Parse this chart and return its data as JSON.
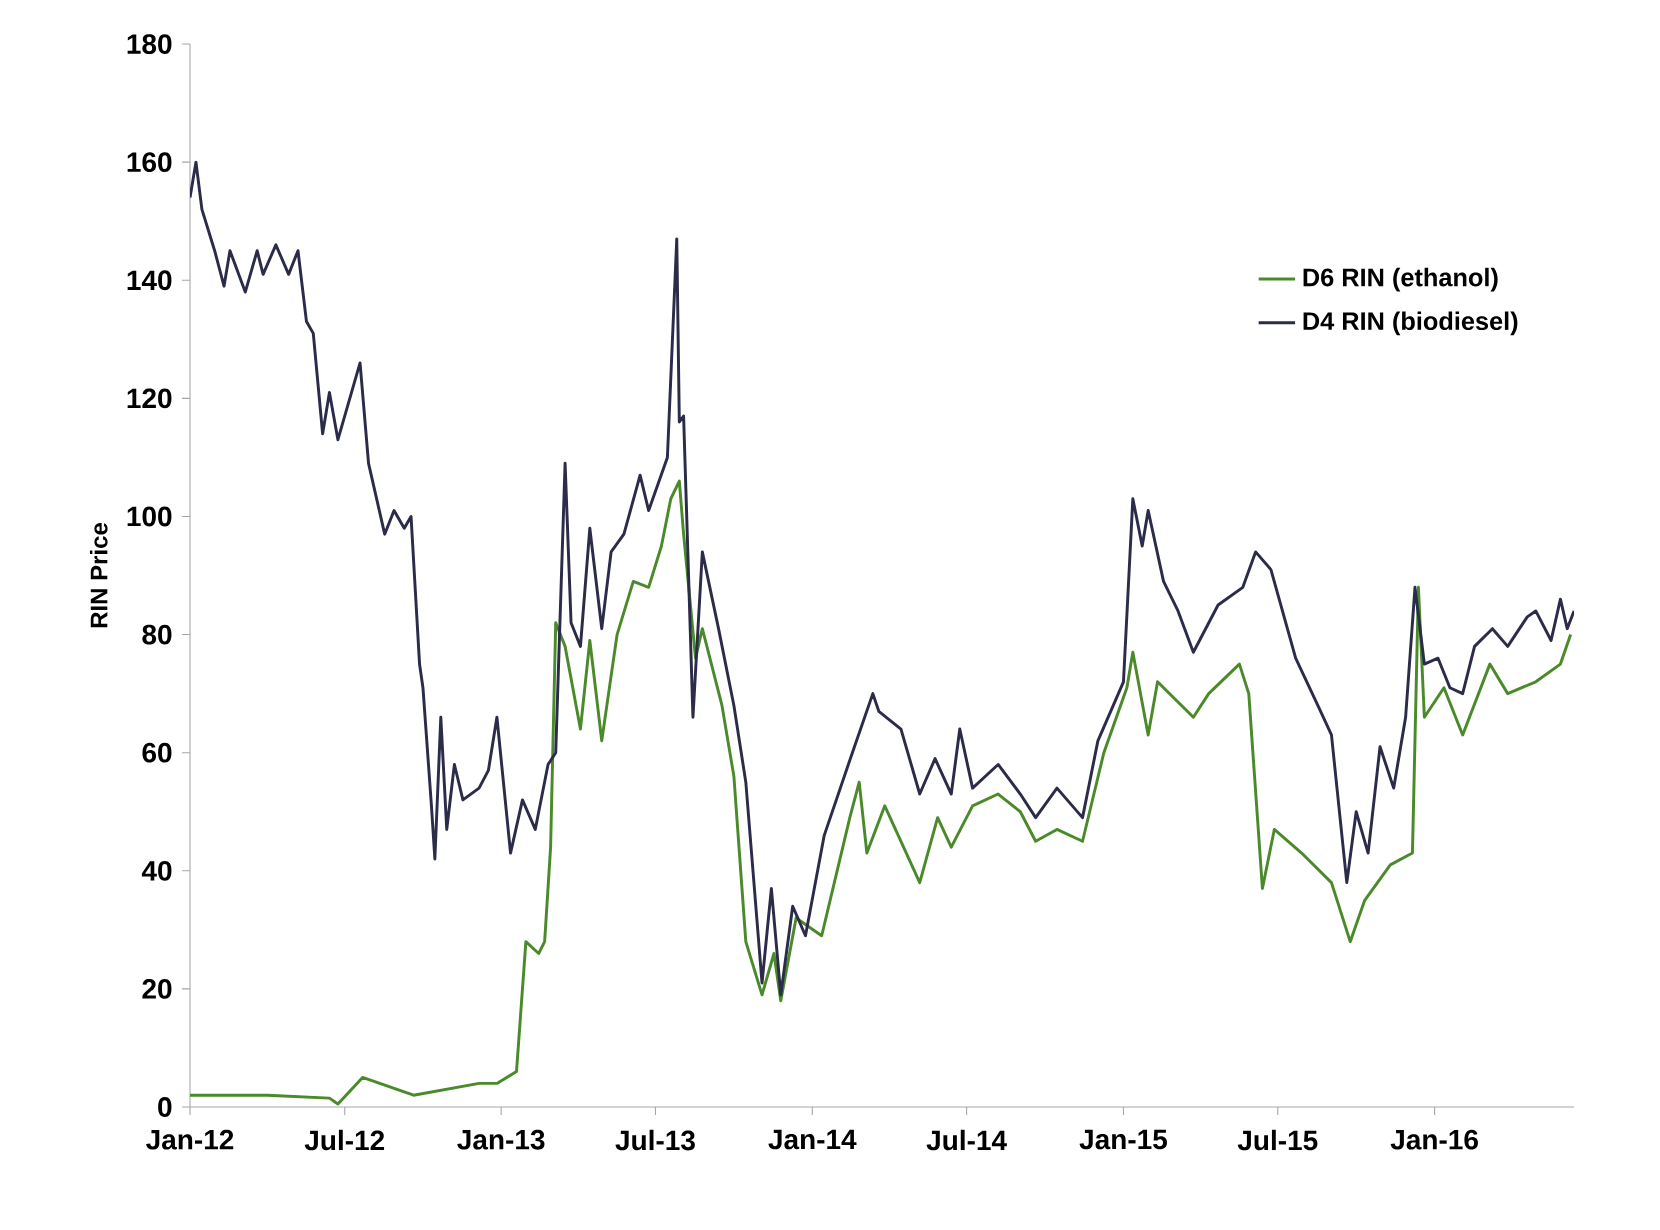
{
  "chart_data": {
    "type": "line",
    "ylabel": "RIN Price",
    "legend": "top right",
    "xlim": [
      "2012-01-01",
      "2016-06-13"
    ],
    "ylim": [
      0,
      180
    ],
    "xticks": [
      {
        "value": "2012-01-01",
        "label": "Jan-12"
      },
      {
        "value": "2012-07-01",
        "label": "Jul-12"
      },
      {
        "value": "2013-01-01",
        "label": "Jan-13"
      },
      {
        "value": "2013-07-01",
        "label": "Jul-13"
      },
      {
        "value": "2014-01-01",
        "label": "Jan-14"
      },
      {
        "value": "2014-07-01",
        "label": "Jul-14"
      },
      {
        "value": "2015-01-01",
        "label": "Jan-15"
      },
      {
        "value": "2015-07-01",
        "label": "Jul-15"
      },
      {
        "value": "2016-01-01",
        "label": "Jan-16"
      }
    ],
    "yticks": [
      0,
      20,
      40,
      60,
      80,
      100,
      120,
      140,
      160,
      180
    ],
    "series": [
      {
        "name": "D6 RIN (ethanol)",
        "color": "#4a8a2a",
        "x": [
          "2012-01-01",
          "2012-04-01",
          "2012-06-13",
          "2012-06-23",
          "2012-07-22",
          "2012-09-20",
          "2012-12-06",
          "2012-12-27",
          "2013-01-19",
          "2013-01-30",
          "2013-02-14",
          "2013-02-21",
          "2013-02-28",
          "2013-03-06",
          "2013-03-17",
          "2013-04-04",
          "2013-04-15",
          "2013-04-29",
          "2013-05-17",
          "2013-06-05",
          "2013-06-23",
          "2013-07-08",
          "2013-07-19",
          "2013-07-29",
          "2013-08-03",
          "2013-08-17",
          "2013-08-25",
          "2013-09-17",
          "2013-10-01",
          "2013-10-15",
          "2013-11-03",
          "2013-11-17",
          "2013-11-25",
          "2013-12-13",
          "2014-01-12",
          "2014-02-14",
          "2014-02-25",
          "2014-03-06",
          "2014-03-27",
          "2014-05-07",
          "2014-05-28",
          "2014-06-13",
          "2014-07-08",
          "2014-08-07",
          "2014-09-02",
          "2014-09-20",
          "2014-10-15",
          "2014-11-14",
          "2014-12-09",
          "2015-01-05",
          "2015-01-12",
          "2015-01-30",
          "2015-02-10",
          "2015-03-24",
          "2015-04-11",
          "2015-05-17",
          "2015-05-28",
          "2015-06-13",
          "2015-06-27",
          "2015-07-29",
          "2015-09-02",
          "2015-09-24",
          "2015-10-11",
          "2015-11-10",
          "2015-12-06",
          "2015-12-13",
          "2015-12-20",
          "2016-01-12",
          "2016-02-03",
          "2016-03-06",
          "2016-03-27",
          "2016-04-29",
          "2016-05-28",
          "2016-06-09"
        ],
        "values": [
          2,
          2,
          1.5,
          0.5,
          5,
          2,
          4,
          4,
          6,
          28,
          26,
          28,
          44,
          82,
          78,
          64,
          79,
          62,
          80,
          89,
          88,
          95,
          103,
          106,
          97,
          76,
          81,
          68,
          56,
          28,
          19,
          26,
          18,
          32,
          29,
          49,
          55,
          43,
          51,
          38,
          49,
          44,
          51,
          53,
          50,
          45,
          47,
          45,
          60,
          71,
          77,
          63,
          72,
          66,
          70,
          75,
          70,
          37,
          47,
          43,
          38,
          28,
          35,
          41,
          43,
          88,
          66,
          71,
          63,
          75,
          70,
          72,
          75,
          80
        ]
      },
      {
        "name": "D4 RIN (biodiesel)",
        "color": "#2b2b4a",
        "x": [
          "2012-01-01",
          "2012-01-08",
          "2012-01-15",
          "2012-01-30",
          "2012-02-10",
          "2012-02-17",
          "2012-03-06",
          "2012-03-20",
          "2012-03-27",
          "2012-04-11",
          "2012-04-26",
          "2012-05-07",
          "2012-05-17",
          "2012-05-25",
          "2012-06-05",
          "2012-06-13",
          "2012-06-23",
          "2012-07-19",
          "2012-07-29",
          "2012-08-17",
          "2012-08-28",
          "2012-09-09",
          "2012-09-17",
          "2012-09-27",
          "2012-10-01",
          "2012-10-11",
          "2012-10-15",
          "2012-10-22",
          "2012-10-29",
          "2012-11-07",
          "2012-11-17",
          "2012-12-06",
          "2012-12-17",
          "2012-12-27",
          "2013-01-12",
          "2013-01-26",
          "2013-02-10",
          "2013-02-25",
          "2013-03-06",
          "2013-03-17",
          "2013-03-24",
          "2013-04-04",
          "2013-04-15",
          "2013-04-29",
          "2013-05-10",
          "2013-05-25",
          "2013-06-13",
          "2013-06-23",
          "2013-07-15",
          "2013-07-26",
          "2013-07-29",
          "2013-08-03",
          "2013-08-14",
          "2013-08-25",
          "2013-09-13",
          "2013-10-01",
          "2013-10-15",
          "2013-11-03",
          "2013-11-14",
          "2013-11-25",
          "2013-12-09",
          "2013-12-24",
          "2014-01-15",
          "2014-02-17",
          "2014-03-13",
          "2014-03-20",
          "2014-04-15",
          "2014-05-07",
          "2014-05-25",
          "2014-06-13",
          "2014-06-23",
          "2014-07-08",
          "2014-08-07",
          "2014-09-02",
          "2014-09-20",
          "2014-10-15",
          "2014-11-14",
          "2014-12-02",
          "2015-01-01",
          "2015-01-12",
          "2015-01-23",
          "2015-01-30",
          "2015-02-17",
          "2015-03-06",
          "2015-03-24",
          "2015-04-22",
          "2015-05-21",
          "2015-06-05",
          "2015-06-23",
          "2015-07-22",
          "2015-08-17",
          "2015-09-02",
          "2015-09-20",
          "2015-10-01",
          "2015-10-15",
          "2015-10-29",
          "2015-11-14",
          "2015-11-28",
          "2015-12-09",
          "2015-12-20",
          "2016-01-05",
          "2016-01-19",
          "2016-02-03",
          "2016-02-17",
          "2016-03-09",
          "2016-03-27",
          "2016-04-19",
          "2016-04-29",
          "2016-05-17",
          "2016-05-28",
          "2016-06-05",
          "2016-06-13"
        ],
        "values": [
          154,
          160,
          152,
          145,
          139,
          145,
          138,
          145,
          141,
          146,
          141,
          145,
          133,
          131,
          114,
          121,
          113,
          126,
          109,
          97,
          101,
          98,
          100,
          75,
          71,
          51,
          42,
          66,
          47,
          58,
          52,
          54,
          57,
          66,
          43,
          52,
          47,
          58,
          60,
          109,
          82,
          78,
          98,
          81,
          94,
          97,
          107,
          101,
          110,
          147,
          116,
          117,
          66,
          94,
          81,
          68,
          55,
          21,
          37,
          19,
          34,
          29,
          46,
          60,
          70,
          67,
          64,
          53,
          59,
          53,
          64,
          54,
          58,
          53,
          49,
          54,
          49,
          62,
          72,
          103,
          95,
          101,
          89,
          84,
          77,
          85,
          88,
          94,
          91,
          76,
          68,
          63,
          38,
          50,
          43,
          61,
          54,
          66,
          88,
          75,
          76,
          71,
          70,
          78,
          81,
          78,
          83,
          84,
          79,
          86,
          81,
          84
        ]
      }
    ]
  }
}
